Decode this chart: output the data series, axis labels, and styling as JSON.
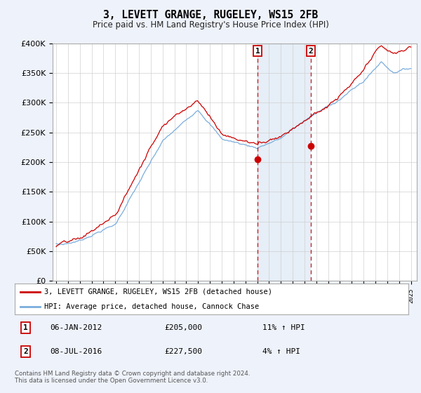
{
  "title": "3, LEVETT GRANGE, RUGELEY, WS15 2FB",
  "subtitle": "Price paid vs. HM Land Registry's House Price Index (HPI)",
  "ylim": [
    0,
    400000
  ],
  "yticks": [
    0,
    50000,
    100000,
    150000,
    200000,
    250000,
    300000,
    350000,
    400000
  ],
  "xlim_start": 1994.7,
  "xlim_end": 2025.5,
  "sale1_date": 2012.03,
  "sale1_price": 205000,
  "sale2_date": 2016.52,
  "sale2_price": 227500,
  "legend_line1": "3, LEVETT GRANGE, RUGELEY, WS15 2FB (detached house)",
  "legend_line2": "HPI: Average price, detached house, Cannock Chase",
  "footnote": "Contains HM Land Registry data © Crown copyright and database right 2024.\nThis data is licensed under the Open Government Licence v3.0.",
  "bg_color": "#eef2fa",
  "plot_bg": "#ffffff",
  "red_color": "#cc0000",
  "blue_color": "#7aaddc",
  "shade_color": "#dce8f5"
}
